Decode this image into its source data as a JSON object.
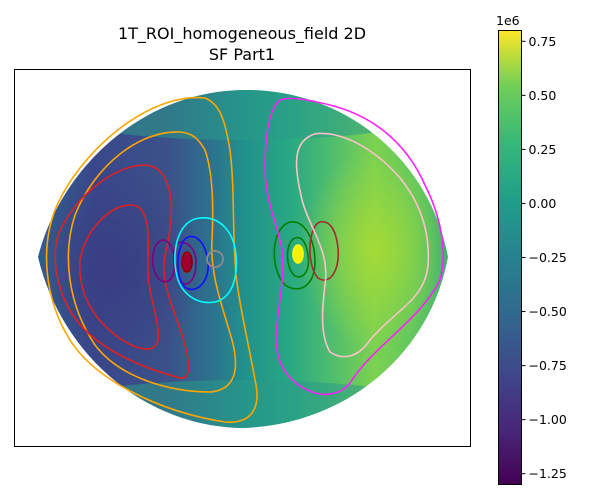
{
  "chart_data": {
    "type": "heatmap",
    "title_lines": [
      "1T_ROI_homogeneous_field 2D",
      "SF Part1"
    ],
    "colormap": "viridis",
    "axes_ticks_visible": false,
    "colorbar": {
      "vmin": -1.3,
      "vmax": 0.8,
      "scale_label": "1e6",
      "ticks": [
        {
          "value": 0.75,
          "label": "0.75"
        },
        {
          "value": 0.5,
          "label": "0.50"
        },
        {
          "value": 0.25,
          "label": "0.25"
        },
        {
          "value": 0.0,
          "label": "0.00"
        },
        {
          "value": -0.25,
          "label": "−0.25"
        },
        {
          "value": -0.5,
          "label": "−0.50"
        },
        {
          "value": -0.75,
          "label": "−0.75"
        },
        {
          "value": -1.0,
          "label": "−1.00"
        },
        {
          "value": -1.25,
          "label": "−1.25"
        }
      ]
    },
    "contour_colors": [
      "#ffa500",
      "#e03030",
      "#800080",
      "#1010ff",
      "#00ffff",
      "#808080",
      "#008000",
      "#a52a2a",
      "#ff00ff",
      "#ffc0cb",
      "#ffff00"
    ]
  }
}
